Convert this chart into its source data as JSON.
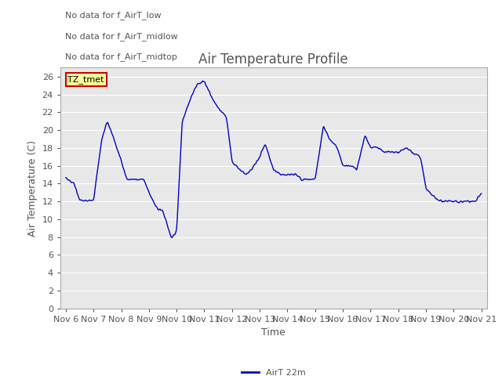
{
  "title": "Air Temperature Profile",
  "xlabel": "Time",
  "ylabel": "Air Temperature (C)",
  "ylim": [
    0,
    27
  ],
  "ytick_values": [
    0,
    2,
    4,
    6,
    8,
    10,
    12,
    14,
    16,
    18,
    20,
    22,
    24,
    26
  ],
  "xtick_labels": [
    "Nov 6",
    "Nov 7",
    "Nov 8",
    "Nov 9",
    "Nov 10",
    "Nov 11",
    "Nov 12",
    "Nov 13",
    "Nov 14",
    "Nov 15",
    "Nov 16",
    "Nov 17",
    "Nov 18",
    "Nov 19",
    "Nov 20",
    "Nov 21"
  ],
  "line_color": "#0000cc",
  "line_label": "AirT 22m",
  "legend_texts": [
    "No data for f_AirT_low",
    "No data for f_AirT_midlow",
    "No data for f_AirT_midtop"
  ],
  "tmet_label": "TZ_tmet",
  "tmet_color": "#ffff99",
  "tmet_border": "#cc0000",
  "bg_color": "#ffffff",
  "plot_bg_color": "#e8e8e8",
  "grid_color": "#ffffff",
  "text_color": "#555555",
  "title_fontsize": 12,
  "axis_fontsize": 9,
  "tick_fontsize": 8
}
